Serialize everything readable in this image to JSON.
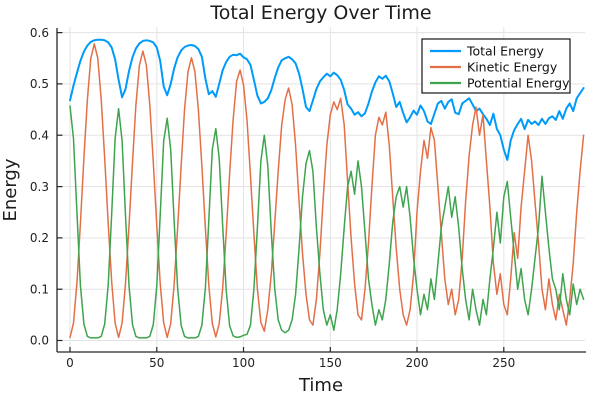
{
  "chart_data": {
    "type": "line",
    "title": "Total Energy Over Time",
    "xlabel": "Time",
    "ylabel": "Energy",
    "xlim": [
      -7.5,
      296.8
    ],
    "ylim": [
      -0.0225,
      0.611
    ],
    "grid": true,
    "legend_position": "top-right",
    "x_ticks": [
      {
        "v": 0,
        "label": "0"
      },
      {
        "v": 50,
        "label": "50"
      },
      {
        "v": 100,
        "label": "100"
      },
      {
        "v": 150,
        "label": "150"
      },
      {
        "v": 200,
        "label": "200"
      },
      {
        "v": 250,
        "label": "250"
      }
    ],
    "y_ticks": [
      {
        "v": 0.0,
        "label": "0.0"
      },
      {
        "v": 0.1,
        "label": "0.1"
      },
      {
        "v": 0.2,
        "label": "0.2"
      },
      {
        "v": 0.3,
        "label": "0.3"
      },
      {
        "v": 0.4,
        "label": "0.4"
      },
      {
        "v": 0.5,
        "label": "0.5"
      },
      {
        "v": 0.6,
        "label": "0.6"
      }
    ],
    "colors": {
      "grid": "#e3e3e3",
      "spine": "#262626",
      "text": "#1c1c1c",
      "legend_border": "#000000",
      "legend_fill": "#ffffff"
    },
    "x": [
      0,
      2,
      4,
      6,
      8,
      10,
      12,
      14,
      16,
      18,
      20,
      22,
      24,
      26,
      28,
      30,
      32,
      34,
      36,
      38,
      40,
      42,
      44,
      46,
      48,
      50,
      52,
      54,
      56,
      58,
      60,
      62,
      64,
      66,
      68,
      70,
      72,
      74,
      76,
      78,
      80,
      82,
      84,
      86,
      88,
      90,
      92,
      94,
      96,
      98,
      100,
      102,
      104,
      106,
      108,
      110,
      112,
      114,
      116,
      118,
      120,
      122,
      124,
      126,
      128,
      130,
      132,
      134,
      136,
      138,
      140,
      142,
      144,
      146,
      148,
      150,
      152,
      154,
      156,
      158,
      160,
      162,
      164,
      166,
      168,
      170,
      172,
      174,
      176,
      178,
      180,
      182,
      184,
      186,
      188,
      190,
      192,
      194,
      196,
      198,
      200,
      202,
      204,
      206,
      208,
      210,
      212,
      214,
      216,
      218,
      220,
      222,
      224,
      226,
      228,
      230,
      232,
      234,
      236,
      238,
      240,
      242,
      244,
      246,
      248,
      250,
      252,
      254,
      256,
      258,
      260,
      262,
      264,
      266,
      268,
      270,
      272,
      274,
      276,
      278,
      280,
      282,
      284,
      286,
      288,
      290,
      292,
      294,
      296
    ],
    "series": [
      {
        "name": "Total Energy",
        "color": "#009BFA",
        "line_width": 2,
        "values": [
          0.468,
          0.497,
          0.522,
          0.545,
          0.563,
          0.575,
          0.582,
          0.585,
          0.586,
          0.586,
          0.585,
          0.581,
          0.571,
          0.548,
          0.508,
          0.474,
          0.49,
          0.525,
          0.552,
          0.569,
          0.579,
          0.584,
          0.585,
          0.584,
          0.581,
          0.571,
          0.545,
          0.495,
          0.478,
          0.5,
          0.53,
          0.552,
          0.565,
          0.572,
          0.575,
          0.576,
          0.574,
          0.568,
          0.553,
          0.51,
          0.48,
          0.486,
          0.475,
          0.5,
          0.527,
          0.543,
          0.553,
          0.557,
          0.556,
          0.559,
          0.552,
          0.548,
          0.537,
          0.508,
          0.477,
          0.462,
          0.465,
          0.472,
          0.488,
          0.512,
          0.532,
          0.546,
          0.55,
          0.553,
          0.548,
          0.54,
          0.52,
          0.49,
          0.455,
          0.447,
          0.468,
          0.49,
          0.505,
          0.513,
          0.52,
          0.515,
          0.522,
          0.517,
          0.508,
          0.488,
          0.46,
          0.452,
          0.44,
          0.445,
          0.437,
          0.443,
          0.462,
          0.485,
          0.503,
          0.515,
          0.51,
          0.516,
          0.505,
          0.482,
          0.455,
          0.465,
          0.443,
          0.425,
          0.435,
          0.448,
          0.44,
          0.458,
          0.447,
          0.427,
          0.422,
          0.442,
          0.462,
          0.467,
          0.452,
          0.465,
          0.47,
          0.444,
          0.441,
          0.462,
          0.467,
          0.472,
          0.46,
          0.447,
          0.452,
          0.441,
          0.432,
          0.42,
          0.442,
          0.412,
          0.4,
          0.372,
          0.352,
          0.39,
          0.41,
          0.422,
          0.432,
          0.412,
          0.43,
          0.422,
          0.427,
          0.42,
          0.432,
          0.422,
          0.433,
          0.437,
          0.43,
          0.447,
          0.432,
          0.452,
          0.462,
          0.447,
          0.472,
          0.482,
          0.492
        ]
      },
      {
        "name": "Kinetic Energy",
        "color": "#E36F47",
        "line_width": 1.5,
        "values": [
          0.006,
          0.034,
          0.114,
          0.228,
          0.355,
          0.47,
          0.55,
          0.578,
          0.55,
          0.47,
          0.355,
          0.228,
          0.114,
          0.034,
          0.006,
          0.034,
          0.111,
          0.223,
          0.347,
          0.459,
          0.536,
          0.564,
          0.536,
          0.459,
          0.347,
          0.223,
          0.111,
          0.034,
          0.006,
          0.033,
          0.108,
          0.218,
          0.339,
          0.449,
          0.524,
          0.551,
          0.524,
          0.449,
          0.339,
          0.218,
          0.108,
          0.033,
          0.007,
          0.033,
          0.102,
          0.208,
          0.324,
          0.43,
          0.505,
          0.527,
          0.498,
          0.43,
          0.32,
          0.208,
          0.1,
          0.035,
          0.018,
          0.06,
          0.13,
          0.23,
          0.33,
          0.42,
          0.47,
          0.492,
          0.46,
          0.38,
          0.27,
          0.17,
          0.09,
          0.04,
          0.03,
          0.08,
          0.17,
          0.28,
          0.38,
          0.44,
          0.465,
          0.45,
          0.472,
          0.42,
          0.31,
          0.2,
          0.11,
          0.05,
          0.04,
          0.1,
          0.19,
          0.3,
          0.4,
          0.435,
          0.42,
          0.445,
          0.38,
          0.28,
          0.18,
          0.1,
          0.05,
          0.03,
          0.06,
          0.13,
          0.25,
          0.33,
          0.39,
          0.355,
          0.415,
          0.39,
          0.3,
          0.21,
          0.12,
          0.07,
          0.1,
          0.05,
          0.08,
          0.16,
          0.27,
          0.36,
          0.42,
          0.455,
          0.4,
          0.44,
          0.35,
          0.26,
          0.15,
          0.09,
          0.13,
          0.07,
          0.05,
          0.12,
          0.21,
          0.16,
          0.26,
          0.33,
          0.4,
          0.35,
          0.27,
          0.19,
          0.1,
          0.06,
          0.12,
          0.07,
          0.04,
          0.09,
          0.06,
          0.03,
          0.08,
          0.15,
          0.25,
          0.33,
          0.4
        ]
      },
      {
        "name": "Potential Energy",
        "color": "#3EA44E",
        "line_width": 1.5,
        "values": [
          0.457,
          0.393,
          0.247,
          0.108,
          0.032,
          0.008,
          0.005,
          0.005,
          0.005,
          0.008,
          0.032,
          0.108,
          0.247,
          0.393,
          0.452,
          0.389,
          0.244,
          0.107,
          0.031,
          0.008,
          0.005,
          0.005,
          0.005,
          0.008,
          0.031,
          0.107,
          0.244,
          0.389,
          0.433,
          0.372,
          0.234,
          0.103,
          0.03,
          0.008,
          0.005,
          0.005,
          0.005,
          0.008,
          0.03,
          0.103,
          0.234,
          0.372,
          0.413,
          0.355,
          0.223,
          0.098,
          0.029,
          0.009,
          0.006,
          0.007,
          0.01,
          0.012,
          0.03,
          0.1,
          0.22,
          0.35,
          0.4,
          0.34,
          0.21,
          0.1,
          0.04,
          0.02,
          0.015,
          0.02,
          0.04,
          0.09,
          0.18,
          0.28,
          0.345,
          0.37,
          0.33,
          0.22,
          0.13,
          0.06,
          0.03,
          0.05,
          0.02,
          0.06,
          0.13,
          0.22,
          0.3,
          0.33,
          0.285,
          0.35,
          0.3,
          0.21,
          0.12,
          0.07,
          0.03,
          0.06,
          0.04,
          0.08,
          0.15,
          0.23,
          0.28,
          0.3,
          0.26,
          0.3,
          0.24,
          0.16,
          0.1,
          0.05,
          0.09,
          0.06,
          0.12,
          0.08,
          0.15,
          0.22,
          0.26,
          0.3,
          0.24,
          0.28,
          0.22,
          0.14,
          0.08,
          0.04,
          0.1,
          0.06,
          0.03,
          0.08,
          0.05,
          0.12,
          0.18,
          0.25,
          0.19,
          0.28,
          0.31,
          0.24,
          0.17,
          0.1,
          0.14,
          0.08,
          0.05,
          0.1,
          0.16,
          0.22,
          0.32,
          0.25,
          0.18,
          0.12,
          0.1,
          0.06,
          0.13,
          0.08,
          0.05,
          0.11,
          0.07,
          0.1,
          0.08
        ]
      }
    ]
  }
}
